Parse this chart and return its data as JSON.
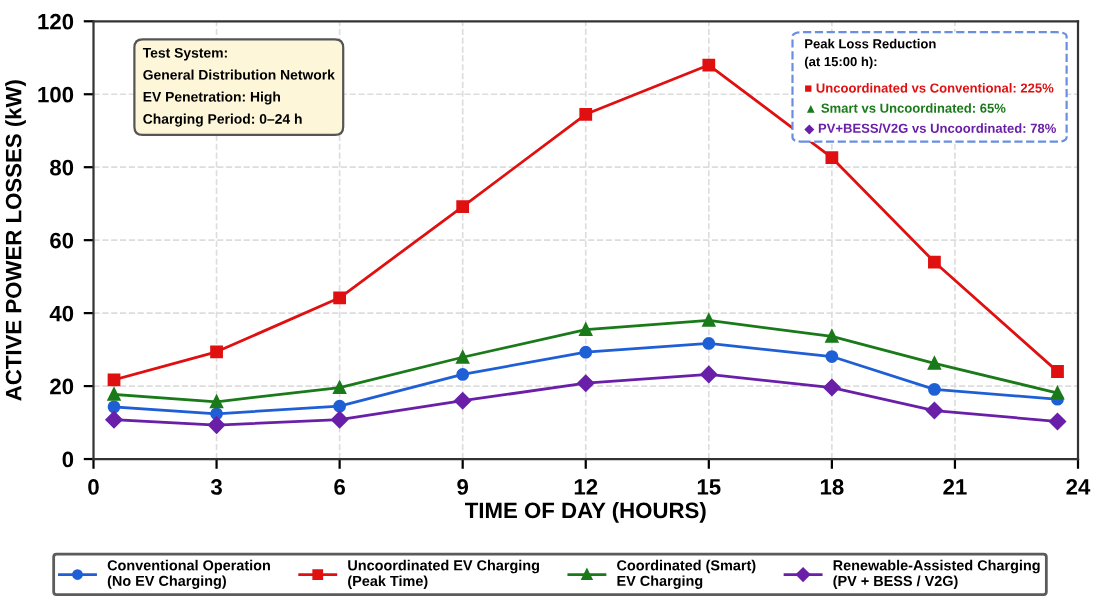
{
  "chart_data": {
    "type": "line",
    "xlabel": "TIME OF DAY (HOURS)",
    "ylabel": "ACTIVE POWER LOSSES (kW)",
    "x": [
      0.5,
      3,
      6,
      9,
      12,
      15,
      18,
      20.5,
      23.5
    ],
    "series": [
      {
        "name": "Conventional Operation\n(No EV Charging)",
        "color": "#1f5fd6",
        "marker": "circle",
        "values": [
          14.3,
          12.4,
          14.5,
          23.2,
          29.3,
          31.7,
          28.1,
          19.1,
          16.4
        ]
      },
      {
        "name": "Uncoordinated EV Charging\n(Peak Time)",
        "color": "#e01010",
        "marker": "square",
        "values": [
          21.7,
          29.4,
          44.2,
          69.2,
          94.5,
          108,
          82.6,
          54,
          24
        ]
      },
      {
        "name": "Coordinated (Smart)\nEV Charging",
        "color": "#1a7a1a",
        "marker": "triangle",
        "values": [
          17.7,
          15.7,
          19.6,
          27.9,
          35.5,
          38,
          33.6,
          26.2,
          18.1
        ]
      },
      {
        "name": "Renewable-Assisted Charging\n(PV + BESS / V2G)",
        "color": "#6a1fa8",
        "marker": "diamond",
        "values": [
          10.8,
          9.3,
          10.8,
          16,
          20.8,
          23.2,
          19.6,
          13.3,
          10.3
        ]
      }
    ],
    "xlim": [
      0,
      24
    ],
    "xticks": [
      0,
      3,
      6,
      9,
      12,
      15,
      18,
      21,
      24
    ],
    "ylim": [
      0,
      120
    ],
    "yticks": [
      0,
      20,
      40,
      60,
      80,
      100,
      120
    ],
    "grid": true,
    "legend": "bottom",
    "line_style": "solid",
    "annotations": [
      "Test System:\nGeneral Distribution Network\nEV Penetration: High\nCharging Period: 0–24 h",
      "Peak Loss Reduction\n(at 15:00 h):",
      "■ Uncoordinated vs Conventional: 225%",
      "▲ Smart vs Uncoordinated: 65%",
      "◆ PV+BESS/V2G vs Uncoordinated: 78%"
    ]
  }
}
